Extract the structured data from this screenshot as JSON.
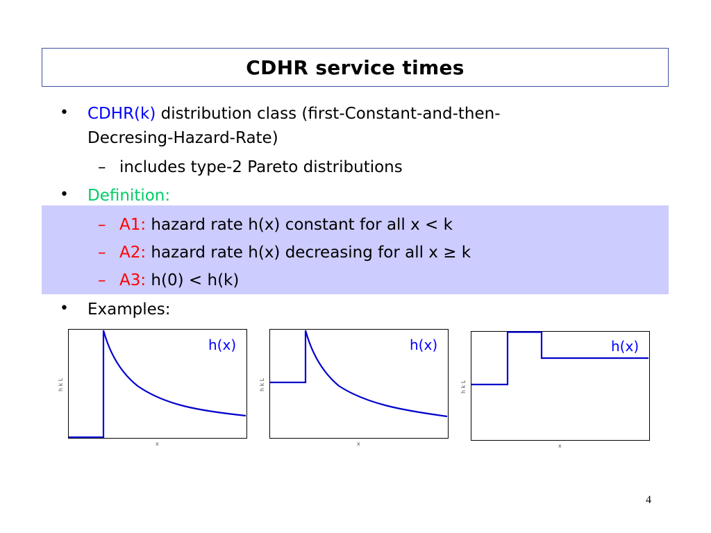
{
  "title": "CDHR service times",
  "bullets": {
    "b1_prefix": "CDHR(k)",
    "b1_rest": " distribution class (first-Constant-and-then-",
    "b1_line2": "Decresing-Hazard-Rate)",
    "b1_sub": "includes type-2 Pareto distributions",
    "b2": "Definition:",
    "a1_label": "A1:",
    "a1_text": " hazard rate h(x) constant for all x < k",
    "a2_label": "A2:",
    "a2_text": " hazard rate h(x) decreasing for all x ≥ k",
    "a3_label": "A3:",
    "a3_text": " h(0) < h(k)",
    "b3": "Examples:"
  },
  "bullet_char": "•",
  "dash_char": "–",
  "plots": [
    {
      "curve_label": "h(x)",
      "x_axis_label": "x",
      "y_axis_label": "h k L"
    },
    {
      "curve_label": "h(x)",
      "x_axis_label": "x",
      "y_axis_label": "h k L"
    },
    {
      "curve_label": "h(x)",
      "x_axis_label": "x",
      "y_axis_label": "h k L"
    }
  ],
  "page_number": "4",
  "colors": {
    "blue": "#0000ff",
    "green": "#00cc66",
    "red": "#ff0000",
    "highlight": "#ccccff",
    "curve": "#0000cc"
  }
}
